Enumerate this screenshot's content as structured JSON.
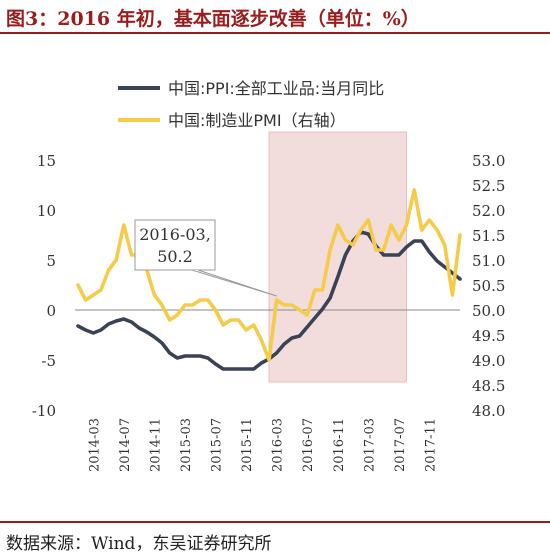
{
  "header": {
    "title": "图3：2016 年初，基本面逐步改善（单位：%）"
  },
  "footer": {
    "source": "数据来源：Wind，东吴证券研究所"
  },
  "chart_data": {
    "type": "line",
    "legend": {
      "placement": "top-center",
      "entries": [
        "中国:PPI:全部工业品:当月同比",
        "中国:制造业PMI（右轴）"
      ]
    },
    "left_axis": {
      "ylim": [
        -10,
        15
      ],
      "ticks": [
        -10,
        -5,
        0,
        5,
        10,
        15
      ]
    },
    "right_axis": {
      "ylim": [
        48.0,
        53.0
      ],
      "ticks": [
        "48.0",
        "48.5",
        "49.0",
        "49.5",
        "50.0",
        "50.5",
        "51.0",
        "51.5",
        "52.0",
        "52.5",
        "53.0"
      ]
    },
    "x_tick_labels": [
      "2014-03",
      "2014-07",
      "2014-11",
      "2015-03",
      "2015-07",
      "2015-11",
      "2016-03",
      "2016-07",
      "2016-11",
      "2017-03",
      "2017-07",
      "2017-11"
    ],
    "x": [
      "2014-01",
      "2014-02",
      "2014-03",
      "2014-04",
      "2014-05",
      "2014-06",
      "2014-07",
      "2014-08",
      "2014-09",
      "2014-10",
      "2014-11",
      "2014-12",
      "2015-01",
      "2015-02",
      "2015-03",
      "2015-04",
      "2015-05",
      "2015-06",
      "2015-07",
      "2015-08",
      "2015-09",
      "2015-10",
      "2015-11",
      "2015-12",
      "2016-01",
      "2016-02",
      "2016-03",
      "2016-04",
      "2016-05",
      "2016-06",
      "2016-07",
      "2016-08",
      "2016-09",
      "2016-10",
      "2016-11",
      "2016-12",
      "2017-01",
      "2017-02",
      "2017-03",
      "2017-04",
      "2017-05",
      "2017-06",
      "2017-07",
      "2017-08",
      "2017-09",
      "2017-10",
      "2017-11",
      "2017-12",
      "2018-01",
      "2018-02",
      "2018-03"
    ],
    "series": [
      {
        "name": "中国:PPI:全部工业品:当月同比",
        "axis": "left",
        "color": "#3a4256",
        "values": [
          -1.6,
          -2.0,
          -2.3,
          -2.0,
          -1.4,
          -1.1,
          -0.9,
          -1.2,
          -1.8,
          -2.2,
          -2.7,
          -3.3,
          -4.3,
          -4.8,
          -4.6,
          -4.6,
          -4.6,
          -4.8,
          -5.4,
          -5.9,
          -5.9,
          -5.9,
          -5.9,
          -5.9,
          -5.3,
          -4.9,
          -4.3,
          -3.4,
          -2.8,
          -2.6,
          -1.7,
          -0.8,
          0.1,
          1.2,
          3.3,
          5.5,
          6.9,
          7.8,
          7.6,
          6.4,
          5.5,
          5.5,
          5.5,
          6.3,
          6.9,
          6.9,
          5.8,
          4.9,
          4.3,
          3.7,
          3.1
        ]
      },
      {
        "name": "中国:制造业PMI（右轴）",
        "axis": "right",
        "color": "#f5cb4a",
        "values": [
          50.5,
          50.2,
          50.3,
          50.4,
          50.8,
          51.0,
          51.7,
          51.1,
          51.1,
          50.8,
          50.3,
          50.1,
          49.8,
          49.9,
          50.1,
          50.1,
          50.2,
          50.2,
          50.0,
          49.7,
          49.8,
          49.8,
          49.6,
          49.7,
          49.4,
          49.0,
          50.2,
          50.1,
          50.1,
          50.0,
          49.9,
          50.4,
          50.4,
          51.2,
          51.7,
          51.4,
          51.3,
          51.6,
          51.8,
          51.2,
          51.2,
          51.7,
          51.4,
          51.7,
          52.4,
          51.6,
          51.8,
          51.6,
          51.3,
          50.3,
          51.5
        ]
      }
    ],
    "shaded_region": {
      "start": "2016-02",
      "end": "2017-08"
    },
    "annotation": {
      "lines": [
        "2016-03,",
        "50.2"
      ],
      "points_to": {
        "x": "2016-03",
        "series": "中国:制造业PMI（右轴）"
      }
    }
  }
}
